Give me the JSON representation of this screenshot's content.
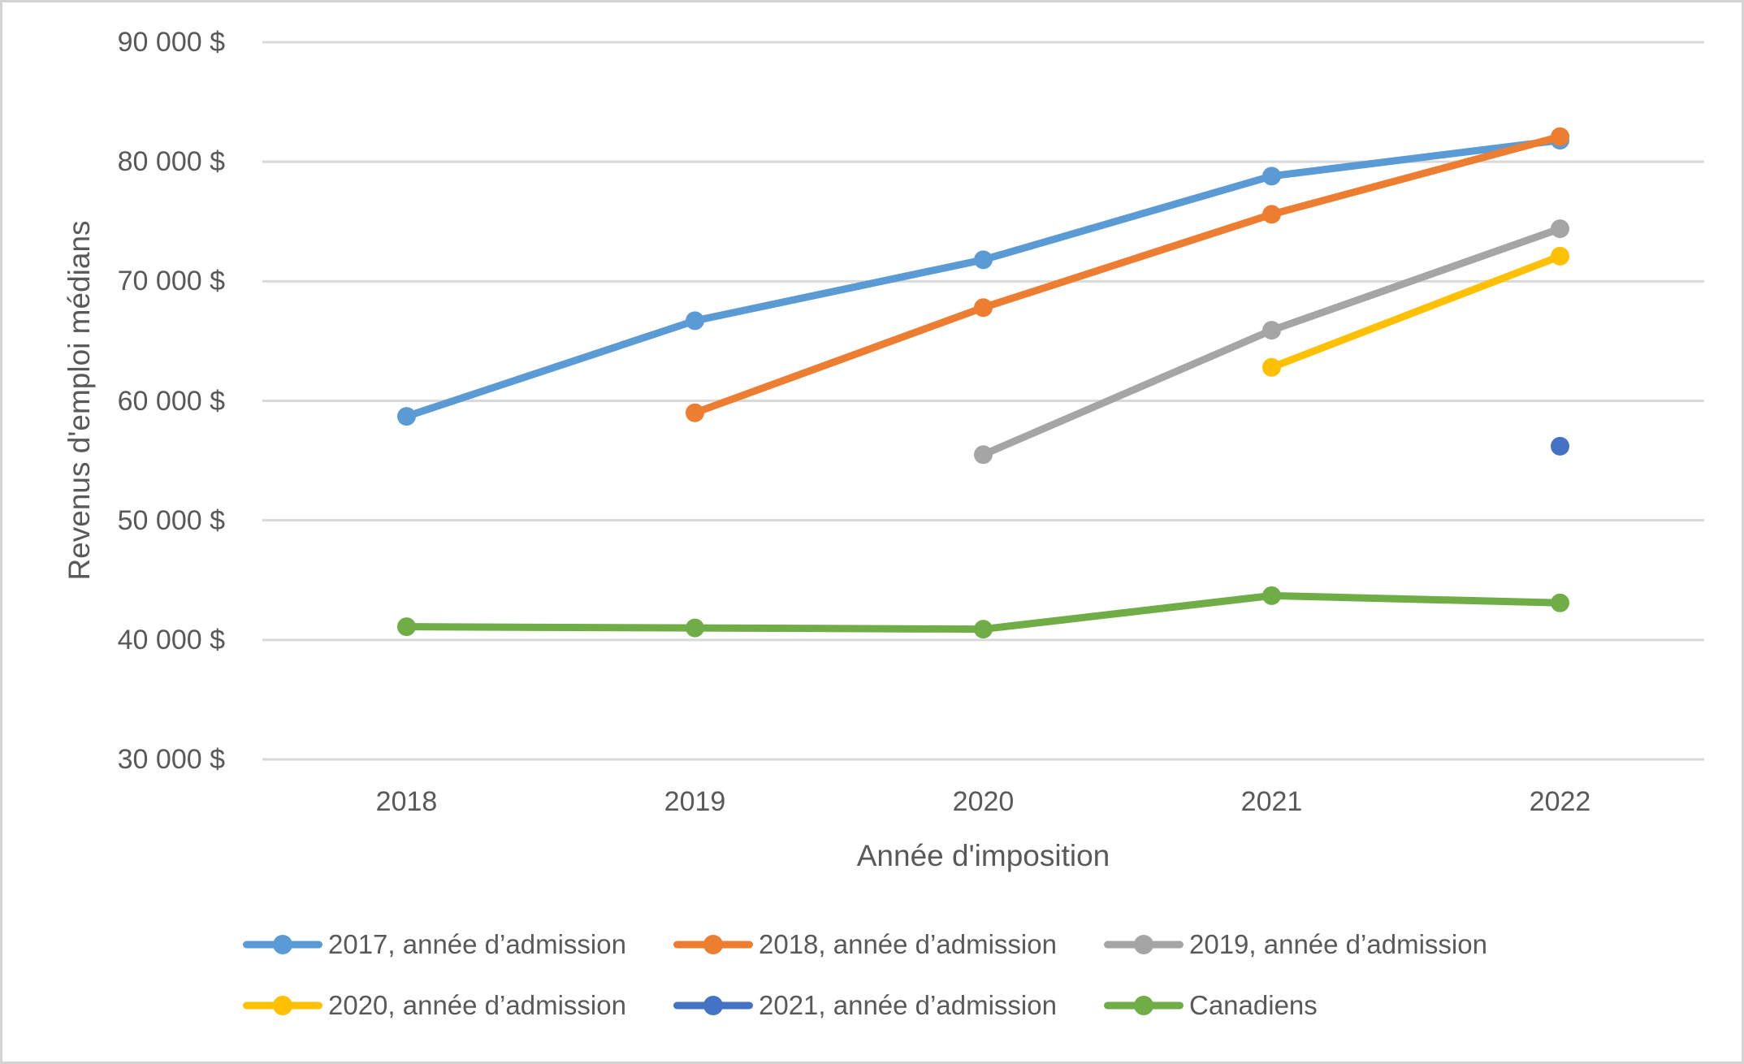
{
  "chart_data": {
    "type": "line",
    "title": "",
    "xlabel": "Année d'imposition",
    "ylabel": "Revenus d'emploi médians",
    "categories": [
      "2018",
      "2019",
      "2020",
      "2021",
      "2022"
    ],
    "ylim": [
      30000,
      90000
    ],
    "grid": true,
    "legend_position": "bottom",
    "gridline_color": "#d9d9d9",
    "text_color": "#595959",
    "yticks": [
      {
        "value": 30000,
        "label": "30 000 $"
      },
      {
        "value": 40000,
        "label": "40 000 $"
      },
      {
        "value": 50000,
        "label": "50 000 $"
      },
      {
        "value": 60000,
        "label": "60 000 $"
      },
      {
        "value": 70000,
        "label": "70 000 $"
      },
      {
        "value": 80000,
        "label": "80 000 $"
      },
      {
        "value": 90000,
        "label": "90 000 $"
      }
    ],
    "series": [
      {
        "name": "2017, année d’admission",
        "color": "#5B9BD5",
        "values": [
          58700,
          66700,
          71800,
          78800,
          81800
        ]
      },
      {
        "name": "2018, année d’admission",
        "color": "#ED7D31",
        "values": [
          null,
          59000,
          67800,
          75600,
          82100
        ]
      },
      {
        "name": "2019, année d’admission",
        "color": "#A5A5A5",
        "values": [
          null,
          null,
          55500,
          65900,
          74400
        ]
      },
      {
        "name": "2020, année d’admission",
        "color": "#FFC000",
        "values": [
          null,
          null,
          null,
          62800,
          72100
        ]
      },
      {
        "name": "2021, année d’admission",
        "color": "#4472C4",
        "values": [
          null,
          null,
          null,
          null,
          56200
        ]
      },
      {
        "name": "Canadiens",
        "color": "#70AD47",
        "values": [
          41100,
          41000,
          40900,
          43700,
          43100
        ]
      }
    ]
  }
}
